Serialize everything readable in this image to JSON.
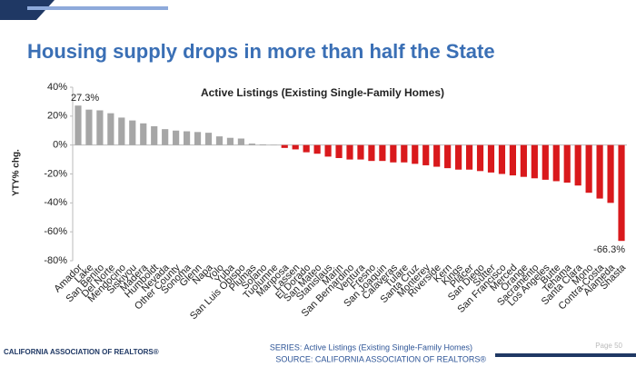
{
  "title": "Housing supply drops in more than half the State",
  "chart_data": {
    "type": "bar",
    "title": "Active Listings (Existing Single-Family Homes)",
    "y_label": "YTY% chg.",
    "categories": [
      "Amador",
      "Lake",
      "San Benito",
      "Del Norte",
      "Mendocino",
      "Siskiyou",
      "Madera",
      "Humboldt",
      "Nevada",
      "Other County",
      "Sonoma",
      "Glenn",
      "Napa",
      "Yolo",
      "Yuba",
      "San Luis Obispo",
      "Plumas",
      "Solano",
      "Tuolumne",
      "Mariposa",
      "Lassen",
      "El Dorado",
      "San Mateo",
      "Stanislaus",
      "Marin",
      "San Bernardino",
      "Ventura",
      "Fresno",
      "San Joaquin",
      "Calaveras",
      "Tulare",
      "Santa Cruz",
      "Monterey",
      "Riverside",
      "Kern",
      "Kings",
      "Placer",
      "San Diego",
      "Sutter",
      "San Francisco",
      "Merced",
      "Orange",
      "Sacramento",
      "Los Angeles",
      "Butte",
      "Tehama",
      "Santa Clara",
      "Mono",
      "Contra-Costa",
      "Alameda",
      "Shasta"
    ],
    "values": [
      27.3,
      24.5,
      24,
      22,
      19,
      17,
      15,
      13,
      11,
      10,
      9.5,
      9,
      8.5,
      6,
      5,
      4.5,
      1,
      0.5,
      0.2,
      -2,
      -3,
      -5,
      -6,
      -8,
      -9,
      -10,
      -10,
      -11,
      -11,
      -12,
      -12,
      -13,
      -14,
      -15,
      -16,
      -17,
      -17,
      -18,
      -19,
      -20,
      -21,
      -22,
      -23,
      -24,
      -25,
      -26,
      -28,
      -33,
      -37,
      -40,
      -66.3
    ],
    "value_labels": [
      "27.3%",
      null,
      null,
      null,
      null,
      null,
      null,
      null,
      null,
      null,
      null,
      null,
      null,
      null,
      null,
      null,
      null,
      null,
      null,
      null,
      null,
      null,
      null,
      null,
      null,
      null,
      null,
      null,
      null,
      null,
      null,
      null,
      null,
      null,
      null,
      null,
      null,
      null,
      null,
      null,
      null,
      null,
      null,
      null,
      null,
      null,
      null,
      null,
      null,
      null,
      "-66.3%"
    ],
    "positive_color": "#a6a6a6",
    "negative_color": "#d9191c",
    "ylim": [
      -80,
      40
    ],
    "yticks": [
      {
        "value": 40,
        "label": "40%"
      },
      {
        "value": 20,
        "label": "20%"
      },
      {
        "value": 0,
        "label": "0%"
      },
      {
        "value": -20,
        "label": "-20%"
      },
      {
        "value": -40,
        "label": "-40%"
      },
      {
        "value": -60,
        "label": "-60%"
      },
      {
        "value": -80,
        "label": "-80%"
      }
    ]
  },
  "footer": {
    "left": "CALIFORNIA ASSOCIATION OF REALTORS®",
    "series": "SERIES: Active Listings (Existing Single-Family Homes)",
    "source": "SOURCE: CALIFORNIA ASSOCIATION OF REALTORS®",
    "page": "Page 50"
  }
}
